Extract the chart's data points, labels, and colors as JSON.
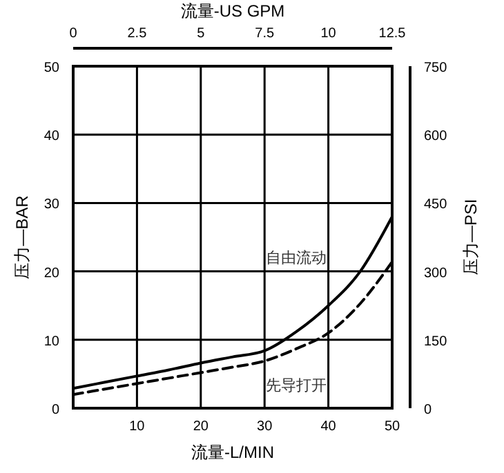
{
  "chart_data": {
    "type": "line",
    "xlabel": "流量-L/MIN",
    "ylabel": "压力—BAR",
    "y2label": "压力—PSI",
    "x2label": "流量-US GPM",
    "x": [
      0,
      5,
      10,
      15,
      20,
      25,
      30,
      35,
      40,
      45,
      50
    ],
    "series": [
      {
        "name": "自由流动",
        "color": "#000000",
        "line_style": "solid",
        "values": [
          2.9,
          3.8,
          4.7,
          5.6,
          6.6,
          7.5,
          8.4,
          11.2,
          15,
          20,
          28
        ]
      },
      {
        "name": "先导打开",
        "color": "#000000",
        "line_style": "dashed",
        "values": [
          2,
          2.8,
          3.6,
          4.4,
          5.2,
          6,
          6.9,
          8.7,
          11,
          15.3,
          21.4
        ]
      }
    ],
    "xlim": [
      0,
      50
    ],
    "xticks": [
      10,
      20,
      30,
      40,
      50
    ],
    "ylim": [
      0,
      50
    ],
    "yticks": [
      0,
      10,
      20,
      30,
      40,
      50
    ],
    "x2lim": [
      0,
      12.5
    ],
    "x2ticks": [
      0,
      2.5,
      5,
      7.5,
      10,
      12.5
    ],
    "y2lim": [
      0,
      750
    ],
    "y2ticks": [
      0,
      150,
      300,
      450,
      600,
      750
    ],
    "grid": true,
    "marker": "none"
  }
}
